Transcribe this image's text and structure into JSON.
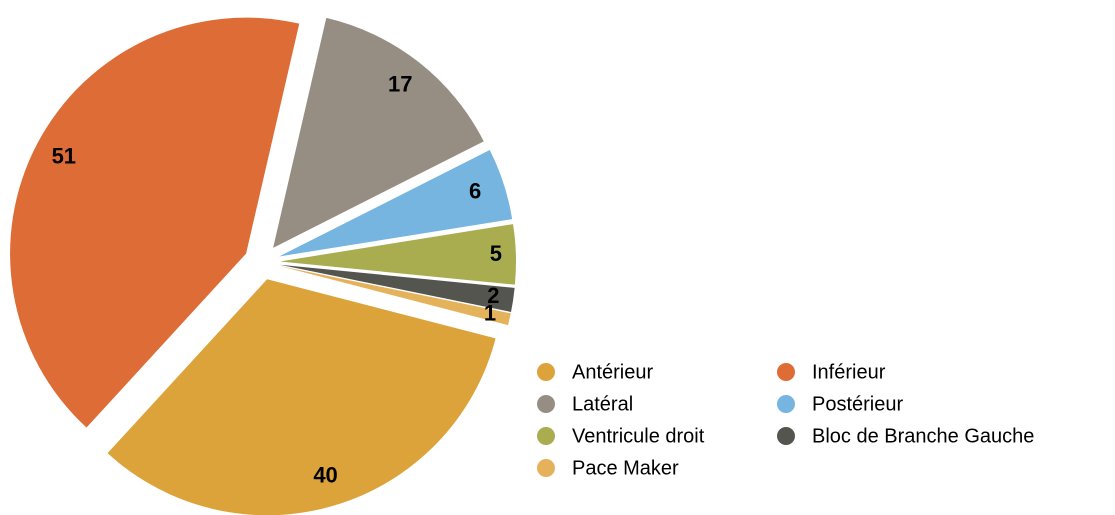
{
  "chart_data": {
    "type": "pie",
    "categories": [
      "Antérieur",
      "Inférieur",
      "Latéral",
      "Postérieur",
      "Ventricule droit",
      "Bloc de Branche Gauche",
      "Pace Maker"
    ],
    "values": [
      40,
      51,
      17,
      6,
      5,
      2,
      1
    ],
    "colors": [
      "#dca33a",
      "#dd6c37",
      "#968e83",
      "#76b5e0",
      "#a9ac4f",
      "#555550",
      "#e5b25c"
    ],
    "exploded": true,
    "legend": "bottom-right"
  }
}
